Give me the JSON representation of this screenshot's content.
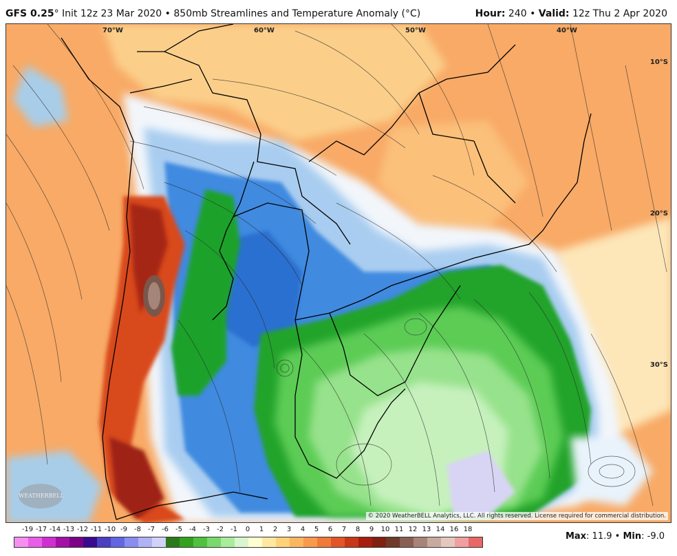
{
  "header": {
    "model": "GFS 0.25",
    "degree_mark": "°",
    "init": " Init 12z 23 Mar 2020",
    "separator": " • ",
    "product": "850mb Streamlines and Temperature Anomaly (°C)",
    "hour_label": "Hour:",
    "hour_value": " 240",
    "valid_label": "Valid:",
    "valid_value": " 12z Thu 2 Apr 2020"
  },
  "map": {
    "lon_labels": [
      "70°W",
      "60°W",
      "50°W",
      "40°W"
    ],
    "lat_labels": [
      "10°S",
      "20°S",
      "30°S"
    ],
    "copyright": "© 2020 WeatherBELL Analytics, LLC. All rights reserved. License required for commercial distribution.",
    "logo_text": "WEATHERBELL"
  },
  "legend": {
    "labels": [
      "-19",
      "-17",
      "-14",
      "-13",
      "-12",
      "-11",
      "-10",
      "-9",
      "-8",
      "-7",
      "-6",
      "-5",
      "-4",
      "-3",
      "-2",
      "-1",
      "0",
      "1",
      "2",
      "3",
      "4",
      "5",
      "6",
      "7",
      "8",
      "9",
      "10",
      "11",
      "12",
      "13",
      "14",
      "16",
      "18"
    ],
    "colors": [
      "#f58ff0",
      "#e95ee8",
      "#cf2fd0",
      "#a40fa6",
      "#7b0083",
      "#3a0a8e",
      "#4b3fc2",
      "#6266e0",
      "#8a8cf0",
      "#b0b2f5",
      "#d0d2fa",
      "#2b7a1a",
      "#33a020",
      "#4fc040",
      "#7ad86c",
      "#a8ec9c",
      "#d8f6d0",
      "#ffffd0",
      "#ffe9a0",
      "#ffd27a",
      "#fdb660",
      "#f89a4c",
      "#f07a38",
      "#e25528",
      "#c83818",
      "#a81e0c",
      "#802010",
      "#6e3a2a",
      "#8a5e52",
      "#a88478",
      "#c8aaa0",
      "#e4c8c0",
      "#f0a0a0",
      "#e86868"
    ]
  },
  "stats": {
    "max_label": "Max",
    "max_value": ": 11.9",
    "separator": " • ",
    "min_label": "Min",
    "min_value": ": -9.0"
  }
}
